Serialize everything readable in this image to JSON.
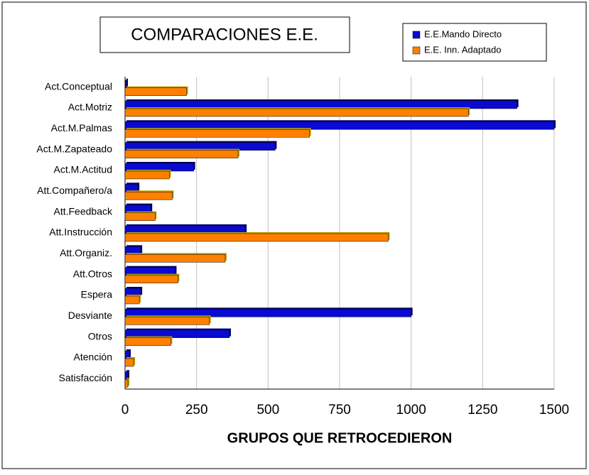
{
  "chart_data": {
    "type": "bar",
    "orientation": "horizontal",
    "title": "COMPARACIONES E.E.",
    "x_label": "GRUPOS QUE RETROCEDIERON",
    "categories": [
      "Act.Conceptual",
      "Act.Motriz",
      "Act.M.Palmas",
      "Act.M.Zapateado",
      "Act.M.Actitud",
      "Att.Compañero/a",
      "Att.Feedback",
      "Att.Instrucción",
      "Att.Organiz.",
      "Att.Otros",
      "Espera",
      "Desviante",
      "Otros",
      "Atención",
      "Satisfacción"
    ],
    "series": [
      {
        "name": "E.E.Mando Directo",
        "color": "#0a0ad2",
        "values": [
          5,
          1370,
          1500,
          525,
          240,
          45,
          90,
          420,
          55,
          175,
          55,
          1000,
          365,
          15,
          10
        ]
      },
      {
        "name": "E.E. Inn. Adaptado",
        "color": "#ff8000",
        "values": [
          215,
          1200,
          645,
          395,
          155,
          165,
          105,
          920,
          350,
          185,
          50,
          295,
          160,
          30,
          10
        ]
      }
    ],
    "xlim": [
      0,
      1500
    ],
    "xticks": [
      0,
      250,
      500,
      750,
      1000,
      1250,
      1500
    ],
    "grid": true,
    "legend": "top-right"
  }
}
